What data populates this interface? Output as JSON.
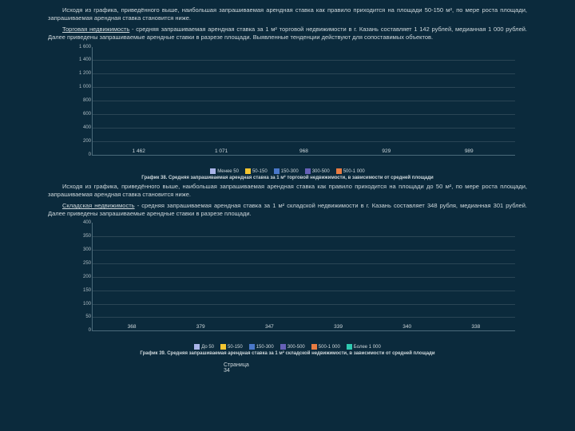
{
  "text": {
    "para1": "Исходя из графика, приведённого выше, наибольшая запрашиваемая арендная ставка как правило приходится на площади 50-150 м², по мере роста площади, запрашиваемая арендная ставка становится ниже.",
    "para2_lead": "Торговая недвижимость",
    "para2_rest": " - средняя запрашиваемая арендная ставка за 1 м² торговой недвижимости в г. Казань составляет 1 142 рублей, медианная 1 000 рублей. Далее приведены запрашиваемые арендные ставки в разрезе площади. Выявленные тенденции действуют для сопоставимых объектов.",
    "para3": "Исходя из графика, приведённого выше, наибольшая запрашиваемая арендная ставка как правило приходится на площади до 50 м², по мере роста площади, запрашиваемая арендная ставка становится ниже.",
    "para4_lead": "Складская недвижимость",
    "para4_rest": " - средняя запрашиваемая арендная ставка за 1 м² складской недвижимости в г. Казань составляет 348 рубля, медианная 301 рублей. Далее приведены запрашиваемые арендные ставки в разрезе площади.",
    "footer_label": "Страница",
    "footer_num": "34"
  },
  "chart1": {
    "type": "bar",
    "ylim": [
      0,
      1600
    ],
    "ytick_step": 200,
    "categories": [
      "Менее 50",
      "50-150",
      "150-300",
      "300-500",
      "500-1 000"
    ],
    "values": [
      1462,
      1071,
      968,
      929,
      989
    ],
    "bar_colors": [
      "#a9b4e8",
      "#f3c531",
      "#4a78c9",
      "#6661b8",
      "#e87c42"
    ],
    "grid_color": "#2a4555",
    "axis_color": "#4a6a7a",
    "label_color": "#cfd8dc",
    "font_size": 6,
    "caption": "График 38. Средняя запрашиваемая арендная ставка за 1 м² торговой недвижимости, в зависимости от средней площади"
  },
  "chart2": {
    "type": "bar",
    "ylim": [
      0,
      400
    ],
    "ytick_step": 50,
    "categories": [
      "До 50",
      "50-150",
      "150-300",
      "300-500",
      "500-1 000",
      "Более 1 000"
    ],
    "values": [
      368,
      379,
      347,
      339,
      340,
      338
    ],
    "bar_colors": [
      "#a9b4e8",
      "#f3c531",
      "#4a78c9",
      "#6661b8",
      "#e87c42",
      "#2fc9b0"
    ],
    "grid_color": "#2a4555",
    "axis_color": "#4a6a7a",
    "label_color": "#cfd8dc",
    "font_size": 6,
    "caption": "График 39. Средняя запрашиваемая арендная ставка за 1 м² складской недвижимости, в зависимости от средней площади"
  }
}
